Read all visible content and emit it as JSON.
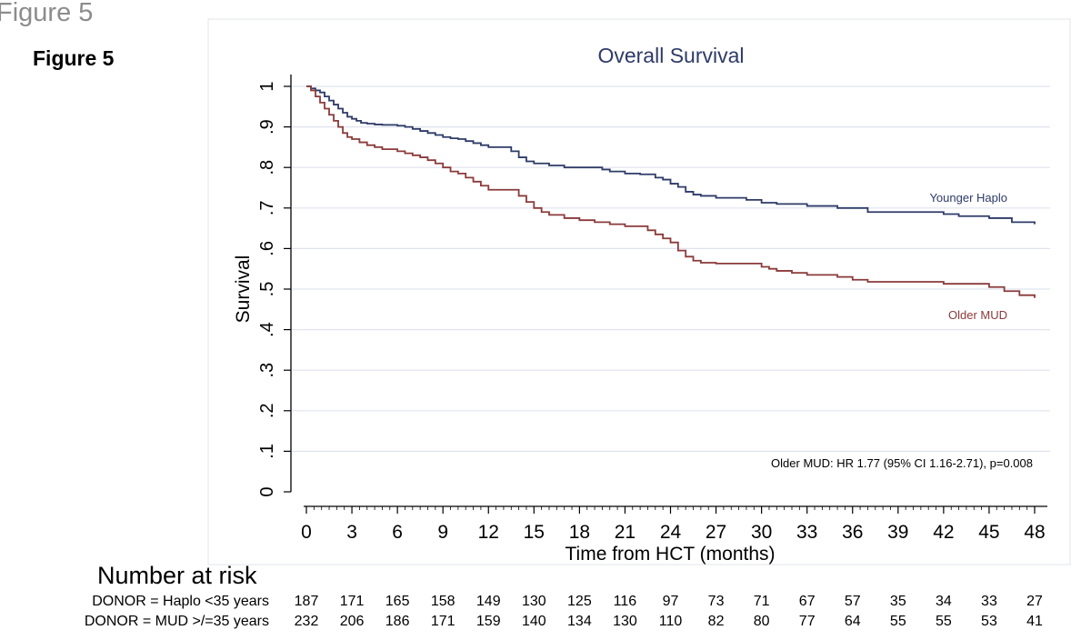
{
  "figure_caption": "Figure 5",
  "figure_label": "Figure 5",
  "chart_data": {
    "type": "line",
    "title": "Overall Survival",
    "xlabel": "Time from HCT (months)",
    "ylabel": "Survival",
    "xlim": [
      0,
      48
    ],
    "ylim": [
      0,
      1
    ],
    "x_ticks": [
      0,
      3,
      6,
      9,
      12,
      15,
      18,
      21,
      24,
      27,
      30,
      33,
      36,
      39,
      42,
      45,
      48
    ],
    "x_tick_labels": [
      "0",
      "3",
      "6",
      "9",
      "12",
      "15",
      "18",
      "21",
      "24",
      "27",
      "30",
      "33",
      "36",
      "39",
      "42",
      "45",
      "48"
    ],
    "y_ticks": [
      0,
      0.1,
      0.2,
      0.3,
      0.4,
      0.5,
      0.6,
      0.7,
      0.8,
      0.9,
      1
    ],
    "y_tick_labels": [
      "0",
      ".1",
      ".2",
      ".3",
      ".4",
      ".5",
      ".6",
      ".7",
      ".8",
      ".9",
      "1"
    ],
    "grid": true,
    "annotation": "Older MUD: HR 1.77 (95% CI 1.16-2.71), p=0.008",
    "series": [
      {
        "name": "Younger Haplo",
        "color": "#2e3b67",
        "step": true,
        "x": [
          0,
          0.3,
          0.6,
          0.9,
          1.2,
          1.5,
          1.8,
          2.1,
          2.4,
          2.7,
          3.0,
          3.3,
          3.6,
          4.0,
          4.5,
          5.0,
          6.0,
          6.5,
          7.0,
          7.5,
          8.0,
          8.5,
          9.0,
          9.5,
          10.0,
          10.5,
          11.0,
          11.5,
          12.0,
          13.5,
          14.0,
          14.5,
          15.0,
          16.0,
          17.0,
          19.5,
          20.0,
          21.0,
          22.0,
          23.0,
          23.5,
          24.0,
          24.5,
          25.0,
          25.5,
          26.0,
          27.0,
          29.0,
          30.0,
          31.0,
          33.0,
          35.0,
          37.0,
          42.0,
          43.0,
          45.0,
          46.5,
          48.0
        ],
        "y": [
          1.0,
          0.995,
          0.99,
          0.985,
          0.975,
          0.965,
          0.955,
          0.945,
          0.935,
          0.925,
          0.92,
          0.915,
          0.91,
          0.908,
          0.906,
          0.905,
          0.903,
          0.9,
          0.895,
          0.89,
          0.885,
          0.88,
          0.875,
          0.872,
          0.87,
          0.865,
          0.86,
          0.855,
          0.85,
          0.84,
          0.825,
          0.815,
          0.81,
          0.805,
          0.8,
          0.795,
          0.79,
          0.785,
          0.783,
          0.775,
          0.77,
          0.76,
          0.752,
          0.74,
          0.733,
          0.73,
          0.725,
          0.72,
          0.713,
          0.71,
          0.705,
          0.7,
          0.69,
          0.685,
          0.68,
          0.675,
          0.665,
          0.66
        ]
      },
      {
        "name": "Older MUD",
        "color": "#8b3a3a",
        "step": true,
        "x": [
          0,
          0.3,
          0.6,
          0.9,
          1.2,
          1.5,
          1.8,
          2.1,
          2.4,
          2.7,
          3.0,
          3.5,
          4.0,
          4.5,
          5.0,
          6.0,
          6.5,
          7.0,
          7.5,
          8.0,
          8.5,
          9.0,
          9.5,
          10.0,
          10.5,
          11.0,
          11.5,
          12.0,
          14.0,
          14.5,
          15.0,
          15.5,
          16.0,
          17.0,
          18.0,
          19.0,
          20.0,
          21.0,
          22.5,
          23.0,
          23.5,
          24.0,
          24.5,
          25.0,
          25.5,
          26.0,
          27.0,
          30.0,
          30.5,
          31.0,
          32.0,
          33.0,
          35.0,
          36.0,
          37.0,
          42.0,
          45.0,
          46.0,
          47.0,
          48.0
        ],
        "y": [
          1.0,
          0.99,
          0.975,
          0.96,
          0.945,
          0.93,
          0.915,
          0.9,
          0.885,
          0.875,
          0.87,
          0.862,
          0.855,
          0.85,
          0.845,
          0.84,
          0.835,
          0.83,
          0.825,
          0.818,
          0.81,
          0.8,
          0.79,
          0.785,
          0.775,
          0.765,
          0.755,
          0.745,
          0.73,
          0.715,
          0.7,
          0.69,
          0.683,
          0.675,
          0.67,
          0.665,
          0.66,
          0.655,
          0.645,
          0.635,
          0.625,
          0.615,
          0.595,
          0.58,
          0.57,
          0.565,
          0.563,
          0.555,
          0.55,
          0.545,
          0.54,
          0.535,
          0.53,
          0.523,
          0.518,
          0.513,
          0.505,
          0.495,
          0.485,
          0.478
        ]
      }
    ]
  },
  "risk_table": {
    "title": "Number at risk",
    "rows": [
      {
        "label": "DONOR = Haplo <35 years",
        "values": [
          "187",
          "171",
          "165",
          "158",
          "149",
          "130",
          "125",
          "116",
          "97",
          "73",
          "71",
          "67",
          "57",
          "35",
          "34",
          "33",
          "27"
        ]
      },
      {
        "label": "DONOR = MUD >/=35 years",
        "values": [
          "232",
          "206",
          "186",
          "171",
          "159",
          "140",
          "134",
          "130",
          "110",
          "82",
          "80",
          "77",
          "64",
          "55",
          "55",
          "53",
          "41"
        ]
      }
    ]
  }
}
